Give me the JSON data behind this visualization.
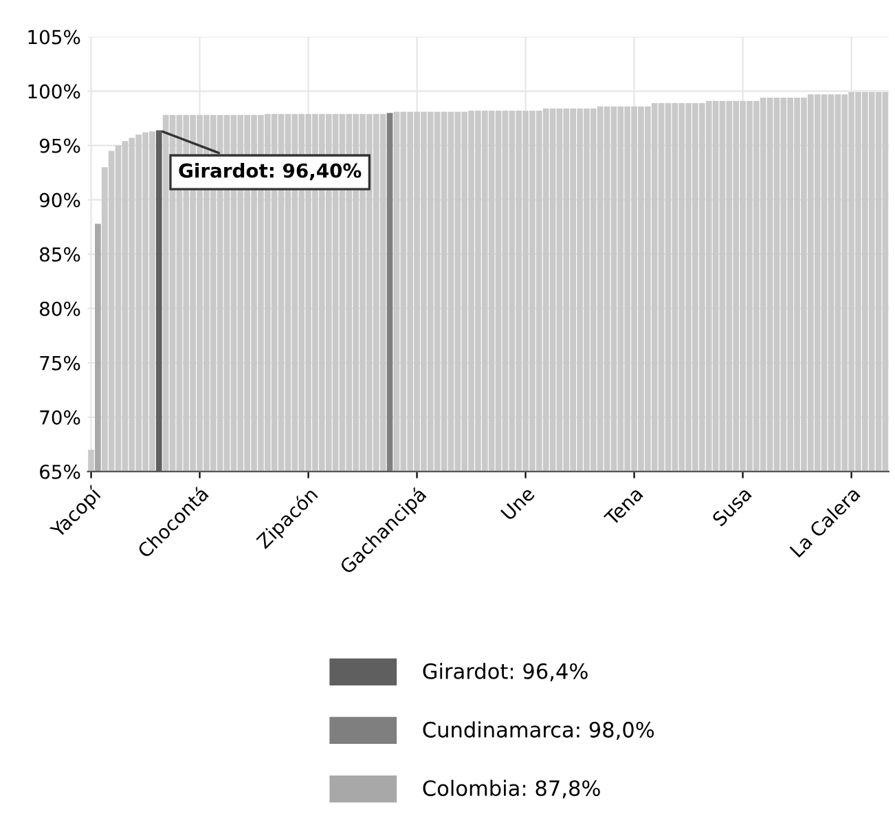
{
  "chart_data": {
    "type": "bar",
    "categories": [
      "Yacopí",
      null,
      null,
      null,
      null,
      null,
      null,
      null,
      null,
      null,
      null,
      null,
      null,
      null,
      null,
      null,
      "Chocontá",
      null,
      null,
      null,
      null,
      null,
      null,
      null,
      null,
      null,
      null,
      null,
      null,
      null,
      null,
      null,
      "Zipacón",
      null,
      null,
      null,
      null,
      null,
      null,
      null,
      null,
      null,
      null,
      null,
      null,
      null,
      null,
      null,
      "Gachancipá",
      null,
      null,
      null,
      null,
      null,
      null,
      null,
      null,
      null,
      null,
      null,
      null,
      null,
      null,
      null,
      "Une",
      null,
      null,
      null,
      null,
      null,
      null,
      null,
      null,
      null,
      null,
      null,
      null,
      null,
      null,
      null,
      "Tena",
      null,
      null,
      null,
      null,
      null,
      null,
      null,
      null,
      null,
      null,
      null,
      null,
      null,
      null,
      null,
      "Susa",
      null,
      null,
      null,
      null,
      null,
      null,
      null,
      null,
      null,
      null,
      null,
      null,
      null,
      null,
      null,
      "La Calera",
      null,
      null,
      null,
      null,
      null
    ],
    "series": [
      {
        "color": "#c9c9c9",
        "values": [
          67.0,
          null,
          93.0,
          94.5,
          95.0,
          95.4,
          95.7,
          96.0,
          96.2,
          96.3,
          null,
          97.8,
          97.8,
          97.8,
          97.8,
          97.8,
          97.8,
          97.8,
          97.8,
          97.8,
          97.8,
          97.8,
          97.8,
          97.8,
          97.8,
          97.8,
          97.9,
          97.9,
          97.9,
          97.9,
          97.9,
          97.9,
          97.9,
          97.9,
          97.9,
          97.9,
          97.9,
          97.9,
          97.9,
          97.9,
          97.9,
          97.9,
          97.9,
          97.9,
          null,
          98.1,
          98.1,
          98.1,
          98.1,
          98.1,
          98.1,
          98.1,
          98.1,
          98.1,
          98.1,
          98.1,
          98.2,
          98.2,
          98.2,
          98.2,
          98.2,
          98.2,
          98.2,
          98.2,
          98.2,
          98.2,
          98.2,
          98.4,
          98.4,
          98.4,
          98.4,
          98.4,
          98.4,
          98.4,
          98.4,
          98.6,
          98.6,
          98.6,
          98.6,
          98.6,
          98.6,
          98.6,
          98.6,
          98.9,
          98.9,
          98.9,
          98.9,
          98.9,
          98.9,
          98.9,
          98.9,
          99.1,
          99.1,
          99.1,
          99.1,
          99.1,
          99.1,
          99.1,
          99.1,
          99.4,
          99.4,
          99.4,
          99.4,
          99.4,
          99.4,
          99.4,
          99.7,
          99.7,
          99.7,
          99.7,
          99.7,
          99.7,
          99.9,
          99.9,
          99.9,
          99.9,
          99.9,
          99.9
        ]
      },
      {
        "name": "Girardot: 96,4%",
        "color": "#5f5f5f",
        "values": [
          null,
          null,
          null,
          null,
          null,
          null,
          null,
          null,
          null,
          null,
          96.4,
          null,
          null,
          null,
          null,
          null,
          null,
          null,
          null,
          null,
          null,
          null,
          null,
          null,
          null,
          null,
          null,
          null,
          null,
          null,
          null,
          null,
          null,
          null,
          null,
          null,
          null,
          null,
          null,
          null,
          null,
          null,
          null,
          null,
          null,
          null,
          null,
          null,
          null,
          null,
          null,
          null,
          null,
          null,
          null,
          null,
          null,
          null,
          null,
          null,
          null,
          null,
          null,
          null,
          null,
          null,
          null,
          null,
          null,
          null,
          null,
          null,
          null,
          null,
          null,
          null,
          null,
          null,
          null,
          null,
          null,
          null,
          null,
          null,
          null,
          null,
          null,
          null,
          null,
          null,
          null,
          null,
          null,
          null,
          null,
          null,
          null,
          null,
          null,
          null,
          null,
          null,
          null,
          null,
          null,
          null,
          null,
          null,
          null,
          null,
          null,
          null,
          null,
          null,
          null,
          null,
          null,
          null
        ]
      },
      {
        "name": "Cundinamarca: 98,0%",
        "color": "#7f7f7f",
        "values": [
          null,
          null,
          null,
          null,
          null,
          null,
          null,
          null,
          null,
          null,
          null,
          null,
          null,
          null,
          null,
          null,
          null,
          null,
          null,
          null,
          null,
          null,
          null,
          null,
          null,
          null,
          null,
          null,
          null,
          null,
          null,
          null,
          null,
          null,
          null,
          null,
          null,
          null,
          null,
          null,
          null,
          null,
          null,
          null,
          98.0,
          null,
          null,
          null,
          null,
          null,
          null,
          null,
          null,
          null,
          null,
          null,
          null,
          null,
          null,
          null,
          null,
          null,
          null,
          null,
          null,
          null,
          null,
          null,
          null,
          null,
          null,
          null,
          null,
          null,
          null,
          null,
          null,
          null,
          null,
          null,
          null,
          null,
          null,
          null,
          null,
          null,
          null,
          null,
          null,
          null,
          null,
          null,
          null,
          null,
          null,
          null,
          null,
          null,
          null,
          null,
          null,
          null,
          null,
          null,
          null,
          null,
          null,
          null,
          null,
          null,
          null,
          null,
          null,
          null,
          null,
          null,
          null,
          null
        ]
      },
      {
        "name": "Colombia: 87,8%",
        "color": "#a8a8a8",
        "values": [
          null,
          87.8,
          null,
          null,
          null,
          null,
          null,
          null,
          null,
          null,
          null,
          null,
          null,
          null,
          null,
          null,
          null,
          null,
          null,
          null,
          null,
          null,
          null,
          null,
          null,
          null,
          null,
          null,
          null,
          null,
          null,
          null,
          null,
          null,
          null,
          null,
          null,
          null,
          null,
          null,
          null,
          null,
          null,
          null,
          null,
          null,
          null,
          null,
          null,
          null,
          null,
          null,
          null,
          null,
          null,
          null,
          null,
          null,
          null,
          null,
          null,
          null,
          null,
          null,
          null,
          null,
          null,
          null,
          null,
          null,
          null,
          null,
          null,
          null,
          null,
          null,
          null,
          null,
          null,
          null,
          null,
          null,
          null,
          null,
          null,
          null,
          null,
          null,
          null,
          null,
          null,
          null,
          null,
          null,
          null,
          null,
          null,
          null,
          null,
          null,
          null,
          null,
          null,
          null,
          null,
          null,
          null,
          null,
          null,
          null,
          null,
          null,
          null,
          null,
          null,
          null,
          null,
          null
        ]
      }
    ],
    "ylim": [
      65,
      105
    ],
    "yticks": [
      {
        "value": 65,
        "label": "65%"
      },
      {
        "value": 70,
        "label": "70%"
      },
      {
        "value": 75,
        "label": "75%"
      },
      {
        "value": 80,
        "label": "80%"
      },
      {
        "value": 85,
        "label": "85%"
      },
      {
        "value": 90,
        "label": "90%"
      },
      {
        "value": 95,
        "label": "95%"
      },
      {
        "value": 100,
        "label": "100%"
      },
      {
        "value": 105,
        "label": "105%"
      }
    ],
    "annotations": [
      {
        "text": "Girardot: 96,40%",
        "y": 96.4
      }
    ],
    "grid": true,
    "legend": "bottom"
  }
}
